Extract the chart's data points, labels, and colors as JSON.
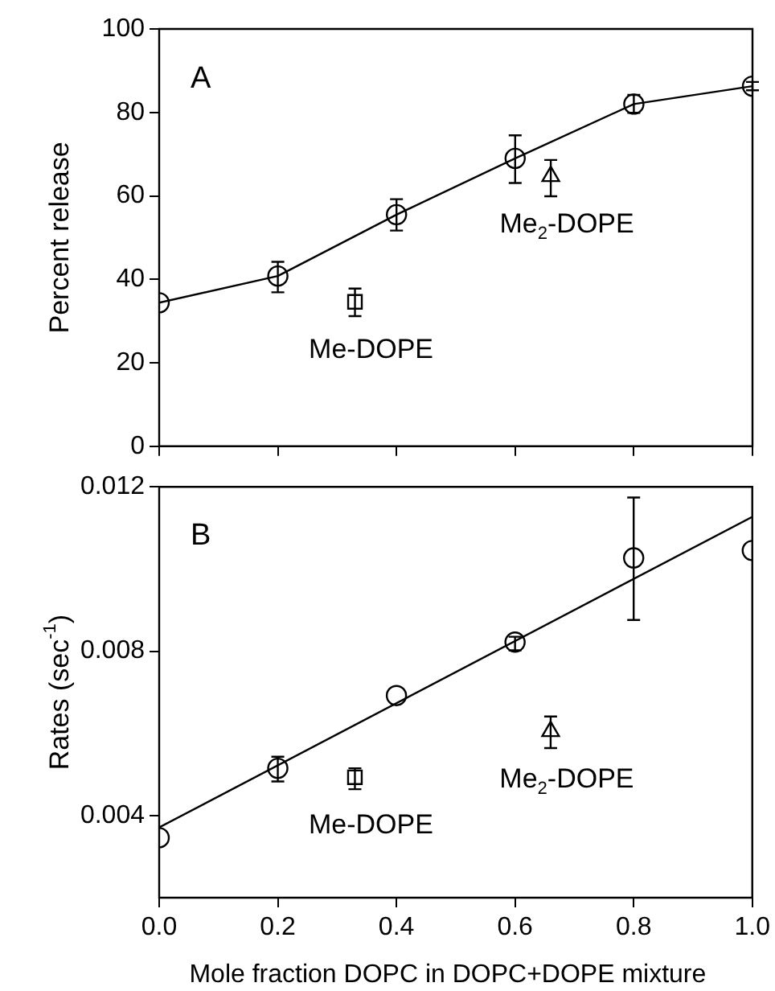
{
  "chart_data": [
    {
      "type": "line",
      "ylabel": "Percent release",
      "xlim": [
        0,
        1
      ],
      "xticks": [
        0,
        0.2,
        0.4,
        0.6,
        0.8,
        1
      ],
      "ylim": [
        0,
        100
      ],
      "yticks": [
        0,
        20,
        40,
        60,
        80,
        100
      ],
      "tick_labels": "y",
      "series": [
        {
          "color": "#000000",
          "marker": "circle",
          "line_style": "solid",
          "x": [
            0,
            0.2,
            0.4,
            0.6,
            0.8,
            1
          ],
          "values": [
            34.4,
            40.8,
            55.5,
            69,
            82,
            86.3
          ],
          "errors": [
            null,
            [
              36.9,
              44.2
            ],
            [
              51.7,
              59.2
            ],
            [
              63.1,
              74.5
            ],
            [
              79.9,
              84.2
            ],
            [
              85.3,
              87.3
            ]
          ]
        },
        {
          "type": "scatter",
          "name": "Me-DOPE",
          "color": "#000000",
          "marker": "square",
          "x": [
            0.33
          ],
          "values": [
            34.6
          ],
          "errors": [
            [
              31.2,
              37.8
            ]
          ]
        },
        {
          "type": "scatter",
          "name": "Me$_{2}$-DOPE",
          "color": "#000000",
          "marker": "triangle",
          "x": [
            0.66
          ],
          "values": [
            64.7
          ],
          "errors": [
            [
              59.9,
              68.6
            ]
          ]
        }
      ],
      "annotations": [
        "A"
      ]
    },
    {
      "type": "scatter",
      "xlabel": "Mole fraction DOPC in DOPC+DOPE mixture",
      "ylabel": "Rates (sec$^{-1}$)",
      "xlim": [
        0,
        1
      ],
      "xticks": [
        {
          "value": 0,
          "label": "0.0"
        },
        0.2,
        0.4,
        0.6,
        0.8,
        {
          "value": 1,
          "label": "1.0"
        }
      ],
      "ylim": [
        0.002,
        0.012
      ],
      "yticks": [
        0.004,
        0.008,
        0.012
      ],
      "series": [
        {
          "color": "#000000",
          "marker": "circle",
          "x": [
            0,
            0.2,
            0.4,
            0.6,
            0.8,
            1
          ],
          "values": [
            0.00346,
            0.00515,
            0.00692,
            0.00822,
            0.01027,
            0.01045
          ],
          "errors": [
            null,
            [
              0.00483,
              0.00543
            ],
            null,
            [
              0.00802,
              0.00835
            ],
            [
              0.00876,
              0.01174
            ],
            null
          ]
        },
        {
          "name": "Me-DOPE",
          "color": "#000000",
          "marker": "square",
          "x": [
            0.33
          ],
          "values": [
            0.00493
          ],
          "errors": [
            [
              0.00464,
              0.00515
            ]
          ]
        },
        {
          "name": "Me$_{2}$-DOPE",
          "color": "#000000",
          "marker": "triangle",
          "x": [
            0.66
          ],
          "values": [
            0.00605
          ],
          "errors": [
            [
              0.00564,
              0.00641
            ]
          ]
        },
        {
          "type": "line",
          "color": "#000000",
          "marker": "none",
          "line_style": "solid",
          "x": [
            0,
            1
          ],
          "values": [
            0.00371,
            0.01127
          ]
        }
      ],
      "annotations": [
        "B"
      ]
    }
  ]
}
